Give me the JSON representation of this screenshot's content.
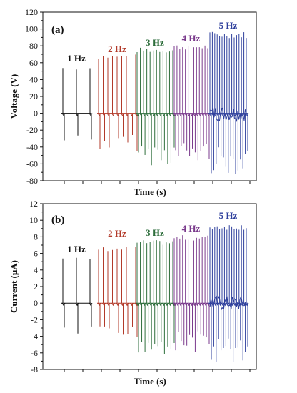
{
  "colors": {
    "f1": "#111111",
    "f2": "#b23a2a",
    "f3": "#2e6e3c",
    "f4": "#7a3a8c",
    "f5": "#2e3f9c"
  },
  "chart_data": [
    {
      "panel": "(a)",
      "type": "line",
      "xlabel": "Time (s)",
      "ylabel": "Voltage (V)",
      "ylim": [
        -80,
        120
      ],
      "yticks": [
        "120",
        "100",
        "80",
        "60",
        "40",
        "20",
        "0",
        "-20",
        "-40",
        "-60",
        "-80"
      ],
      "x_tick_labels": "none",
      "series": [
        {
          "name": "1 Hz",
          "color": "#111111",
          "pulses": 3,
          "peak_max": 56,
          "peak_min": -40
        },
        {
          "name": "2 Hz",
          "color": "#b23a2a",
          "pulses": 9,
          "peak_max": 70,
          "peak_min": -45
        },
        {
          "name": "3 Hz",
          "color": "#2e6e3c",
          "pulses": 12,
          "peak_max": 78,
          "peak_min": -62
        },
        {
          "name": "4 Hz",
          "color": "#7a3a8c",
          "pulses": 13,
          "peak_max": 82,
          "peak_min": -60
        },
        {
          "name": "5 Hz",
          "color": "#2e3f9c",
          "pulses": 16,
          "peak_max": 97,
          "peak_min": -72
        }
      ]
    },
    {
      "panel": "(b)",
      "type": "line",
      "xlabel": "Time (s)",
      "ylabel": "Current (μA)",
      "ylim": [
        -8,
        12
      ],
      "yticks": [
        "12",
        "10",
        "8",
        "6",
        "4",
        "2",
        "0",
        "-2",
        "-4",
        "-6",
        "-8"
      ],
      "x_tick_labels": "none",
      "series": [
        {
          "name": "1 Hz",
          "color": "#111111",
          "pulses": 3,
          "peak_max": 5.5,
          "peak_min": -4.2
        },
        {
          "name": "2 Hz",
          "color": "#b23a2a",
          "pulses": 9,
          "peak_max": 6.8,
          "peak_min": -4.8
        },
        {
          "name": "3 Hz",
          "color": "#2e6e3c",
          "pulses": 12,
          "peak_max": 7.6,
          "peak_min": -6.2
        },
        {
          "name": "4 Hz",
          "color": "#7a3a8c",
          "pulses": 13,
          "peak_max": 8.2,
          "peak_min": -6.0
        },
        {
          "name": "5 Hz",
          "color": "#2e3f9c",
          "pulses": 16,
          "peak_max": 9.6,
          "peak_min": -7.4
        }
      ]
    }
  ]
}
